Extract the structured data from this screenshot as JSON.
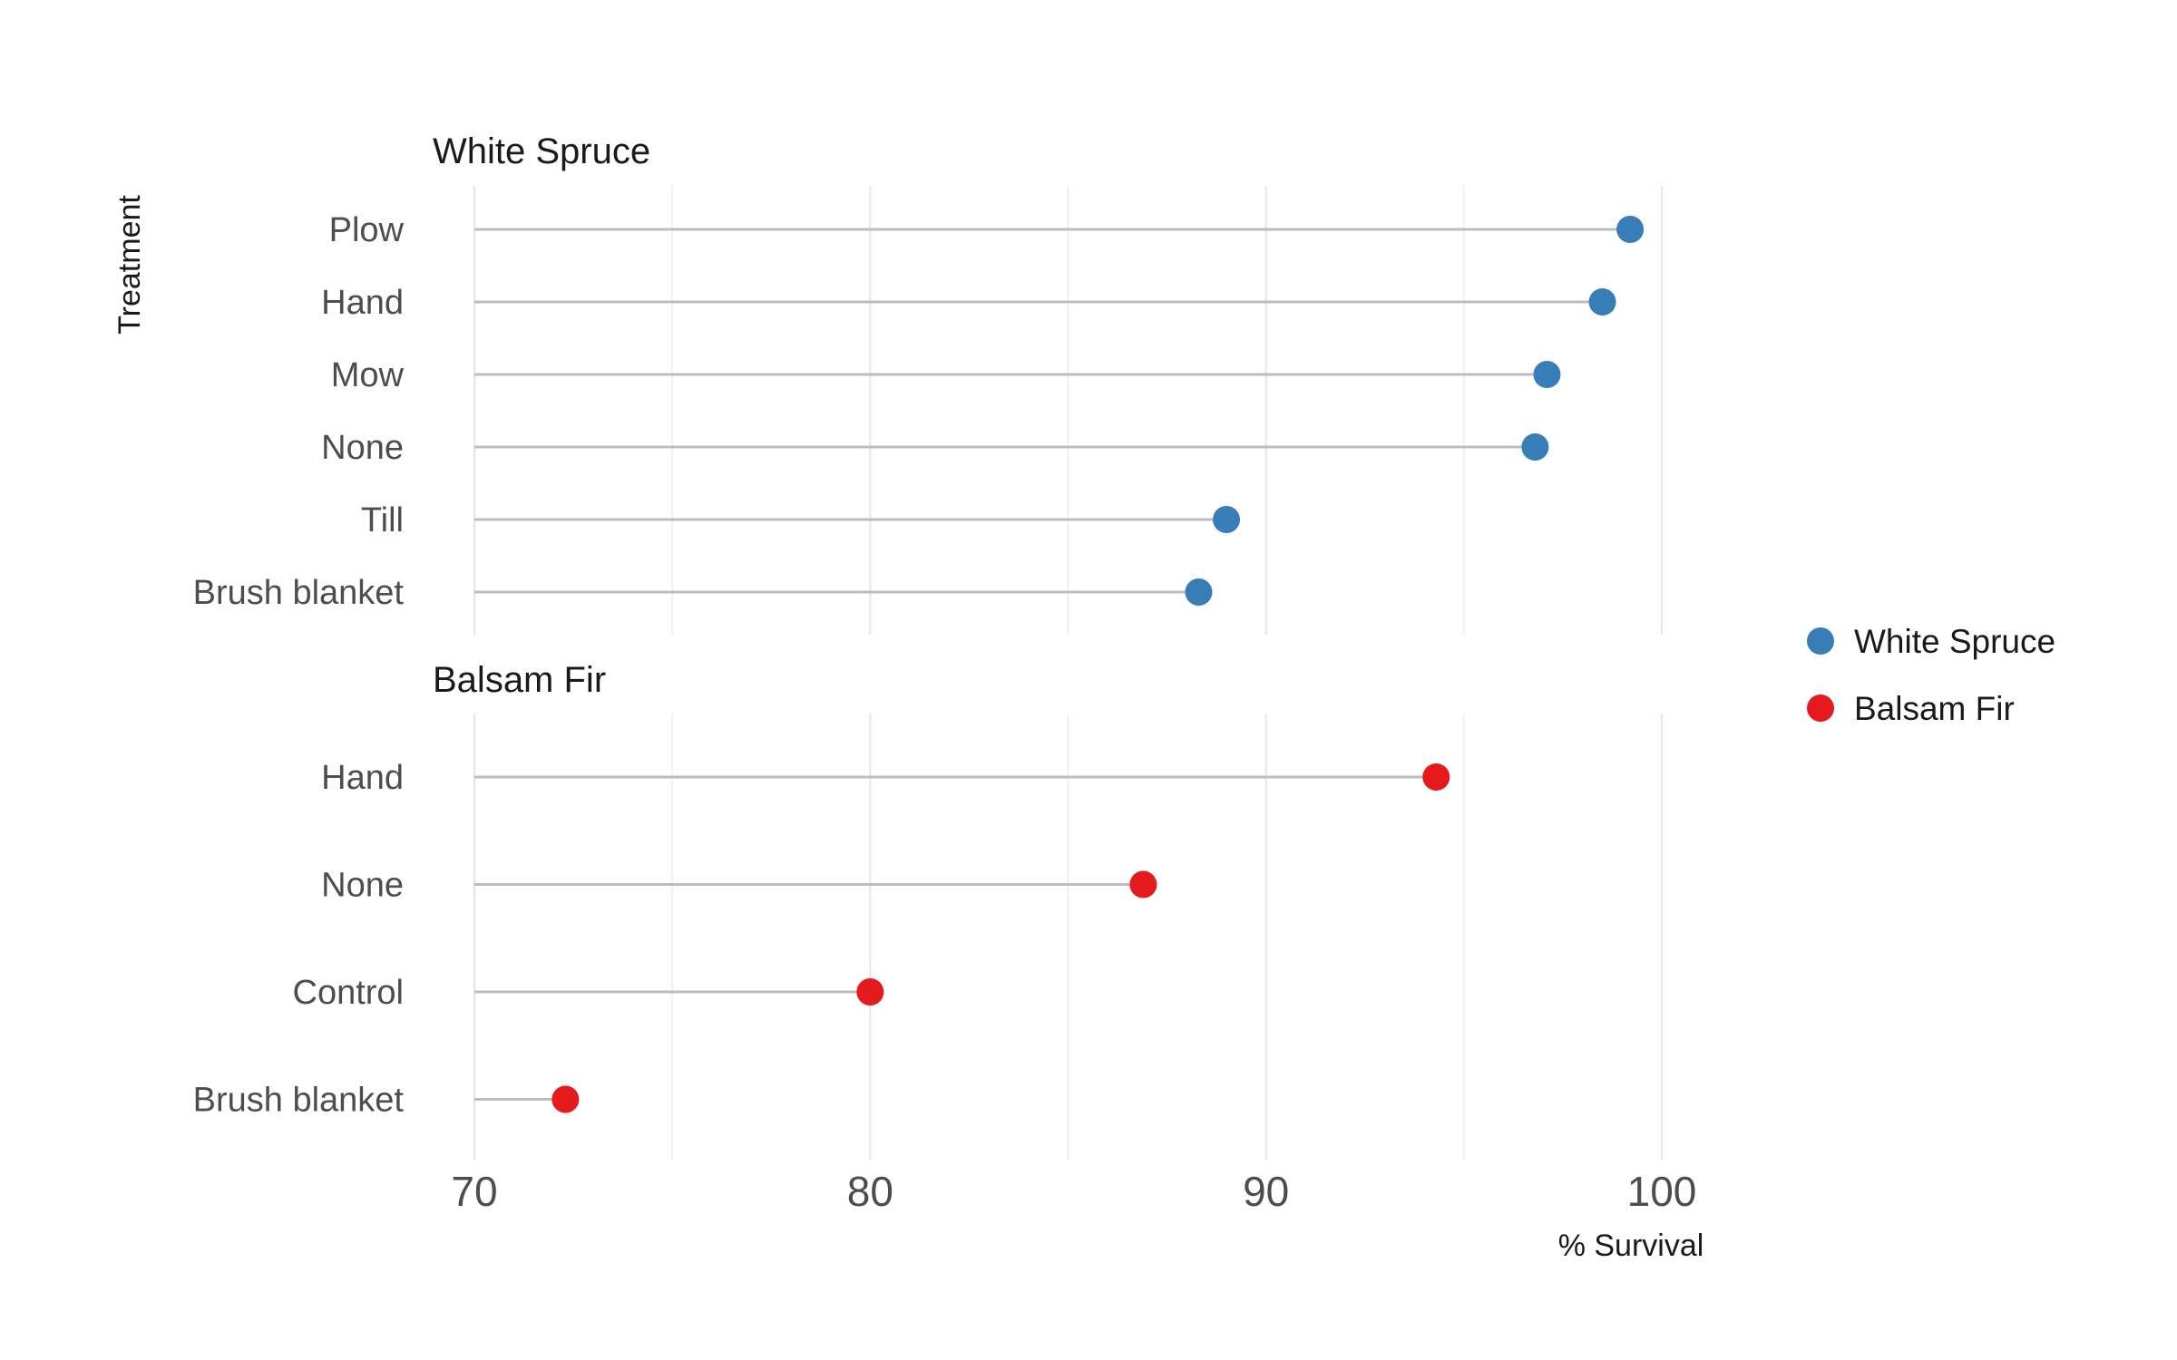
{
  "chart_data": {
    "type": "lollipop",
    "xlabel": "% Survival",
    "ylabel": "Treatment",
    "xlim": [
      70,
      100
    ],
    "x_ticks": [
      "70",
      "80",
      "90",
      "100"
    ],
    "grid": true,
    "legend_position": "right",
    "colors": {
      "White Spruce": "#377EB8",
      "Balsam Fir": "#E41A1C"
    },
    "legend": [
      {
        "name": "White Spruce",
        "color": "#377EB8"
      },
      {
        "name": "Balsam Fir",
        "color": "#E41A1C"
      }
    ],
    "panels": [
      {
        "title": "White Spruce",
        "color": "#377EB8",
        "categories": [
          "Plow",
          "Hand",
          "Mow",
          "None",
          "Till",
          "Brush blanket"
        ],
        "values": [
          99.2,
          98.5,
          97.1,
          96.8,
          89.0,
          88.3
        ]
      },
      {
        "title": "Balsam Fir",
        "color": "#E41A1C",
        "categories": [
          "Hand",
          "None",
          "Control",
          "Brush blanket"
        ],
        "values": [
          94.3,
          86.9,
          80.0,
          72.3
        ]
      }
    ]
  }
}
